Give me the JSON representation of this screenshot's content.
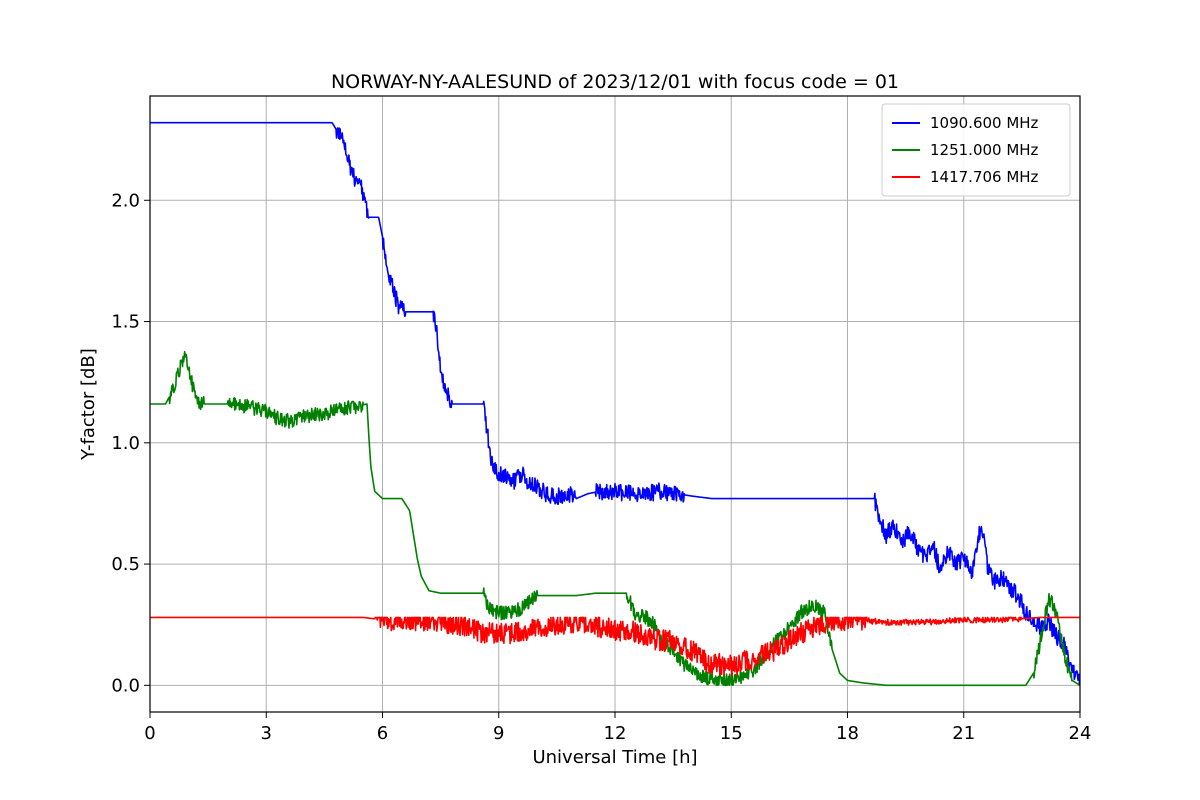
{
  "chart_data": {
    "type": "line",
    "title": "NORWAY-NY-AALESUND of 2023/12/01 with focus code = 01",
    "xlabel": "Universal Time [h]",
    "ylabel": "Y-factor [dB]",
    "xlim": [
      0,
      24
    ],
    "ylim": [
      -0.11,
      2.43
    ],
    "xticks": [
      0,
      3,
      6,
      9,
      12,
      15,
      18,
      21,
      24
    ],
    "xtick_labels": [
      "0",
      "3",
      "6",
      "9",
      "12",
      "15",
      "18",
      "21",
      "24"
    ],
    "yticks": [
      0.0,
      0.5,
      1.0,
      1.5,
      2.0
    ],
    "ytick_labels": [
      "0.0",
      "0.5",
      "1.0",
      "1.5",
      "2.0"
    ],
    "grid": true,
    "legend_position": "top-right",
    "series": [
      {
        "name": "1090.600 MHz",
        "color": "#0000ff",
        "x": [
          0,
          4.7,
          4.85,
          5.0,
          5.1,
          5.2,
          5.3,
          5.4,
          5.5,
          5.6,
          5.65,
          5.75,
          5.9,
          6.0,
          6.1,
          6.2,
          6.3,
          6.4,
          6.5,
          6.6,
          7.3,
          7.4,
          7.5,
          7.6,
          7.7,
          7.8,
          7.9,
          8.6,
          8.7,
          8.8,
          8.9,
          9.0,
          9.2,
          9.4,
          9.6,
          9.8,
          10.0,
          10.2,
          10.4,
          10.6,
          10.8,
          11.0,
          11.3,
          11.6,
          12.0,
          12.4,
          12.8,
          13.2,
          13.6,
          14.0,
          14.5,
          15.0,
          16.0,
          17.0,
          18.0,
          18.7,
          18.8,
          18.9,
          19.0,
          19.2,
          19.4,
          19.6,
          19.8,
          20.0,
          20.2,
          20.4,
          20.6,
          20.8,
          21.0,
          21.2,
          21.4,
          21.5,
          21.6,
          21.8,
          22.0,
          22.2,
          22.4,
          22.6,
          22.8,
          23.0,
          23.2,
          23.4,
          23.6,
          23.8,
          24.0
        ],
        "values": [
          2.32,
          2.32,
          2.28,
          2.25,
          2.18,
          2.12,
          2.08,
          2.1,
          2.02,
          1.96,
          1.93,
          1.93,
          1.93,
          1.85,
          1.72,
          1.68,
          1.62,
          1.57,
          1.55,
          1.54,
          1.54,
          1.45,
          1.3,
          1.24,
          1.2,
          1.16,
          1.16,
          1.16,
          1.05,
          0.92,
          0.9,
          0.87,
          0.86,
          0.84,
          0.87,
          0.83,
          0.82,
          0.79,
          0.78,
          0.78,
          0.79,
          0.77,
          0.79,
          0.8,
          0.8,
          0.79,
          0.79,
          0.8,
          0.79,
          0.78,
          0.77,
          0.77,
          0.77,
          0.77,
          0.77,
          0.77,
          0.7,
          0.66,
          0.62,
          0.66,
          0.58,
          0.64,
          0.57,
          0.52,
          0.58,
          0.47,
          0.56,
          0.5,
          0.53,
          0.46,
          0.62,
          0.64,
          0.5,
          0.43,
          0.44,
          0.4,
          0.37,
          0.3,
          0.26,
          0.24,
          0.26,
          0.2,
          0.17,
          0.07,
          0.02
        ]
      },
      {
        "name": "1251.000 MHz",
        "color": "#008000",
        "x": [
          0,
          0.4,
          0.6,
          0.8,
          0.9,
          1.0,
          1.15,
          1.3,
          1.5,
          2.0,
          2.5,
          3.0,
          3.3,
          3.6,
          4.0,
          4.5,
          5.0,
          5.6,
          5.65,
          5.7,
          5.8,
          6.0,
          6.5,
          6.7,
          6.8,
          6.9,
          7.0,
          7.2,
          7.5,
          8.0,
          8.6,
          8.7,
          8.9,
          9.2,
          9.5,
          9.8,
          10.0,
          10.5,
          11.0,
          11.5,
          12.0,
          12.3,
          12.5,
          12.8,
          13.0,
          13.2,
          13.5,
          13.8,
          14.0,
          14.2,
          14.6,
          15.0,
          15.5,
          16.0,
          16.5,
          16.8,
          17.1,
          17.4,
          17.6,
          17.8,
          18.0,
          18.4,
          19.0,
          20.0,
          21.0,
          22.0,
          22.6,
          22.8,
          23.0,
          23.2,
          23.4,
          23.6,
          23.8,
          24.0
        ],
        "values": [
          1.16,
          1.16,
          1.22,
          1.32,
          1.36,
          1.3,
          1.2,
          1.16,
          1.16,
          1.16,
          1.15,
          1.13,
          1.1,
          1.09,
          1.11,
          1.12,
          1.14,
          1.16,
          1.02,
          0.9,
          0.8,
          0.77,
          0.77,
          0.72,
          0.62,
          0.52,
          0.45,
          0.39,
          0.38,
          0.38,
          0.38,
          0.33,
          0.3,
          0.3,
          0.31,
          0.35,
          0.37,
          0.37,
          0.37,
          0.38,
          0.38,
          0.38,
          0.3,
          0.28,
          0.25,
          0.18,
          0.15,
          0.08,
          0.06,
          0.04,
          0.02,
          0.02,
          0.05,
          0.15,
          0.24,
          0.3,
          0.33,
          0.3,
          0.15,
          0.05,
          0.02,
          0.01,
          0.0,
          0.0,
          0.0,
          0.0,
          0.0,
          0.05,
          0.2,
          0.36,
          0.3,
          0.12,
          0.02,
          0.0
        ]
      },
      {
        "name": "1417.706 MHz",
        "color": "#ff0000",
        "x": [
          0,
          5.5,
          6.0,
          7.0,
          7.5,
          8.0,
          8.5,
          9.0,
          9.5,
          10.0,
          10.5,
          11.0,
          11.5,
          12.0,
          12.5,
          13.0,
          13.5,
          14.0,
          14.3,
          14.6,
          15.0,
          15.4,
          15.8,
          16.2,
          16.6,
          17.0,
          17.4,
          17.8,
          18.2,
          19.0,
          20.0,
          21.0,
          22.0,
          23.0,
          24.0
        ],
        "values": [
          0.28,
          0.28,
          0.27,
          0.27,
          0.26,
          0.25,
          0.22,
          0.21,
          0.22,
          0.23,
          0.25,
          0.26,
          0.24,
          0.23,
          0.22,
          0.19,
          0.18,
          0.14,
          0.1,
          0.09,
          0.08,
          0.1,
          0.12,
          0.15,
          0.2,
          0.23,
          0.26,
          0.27,
          0.27,
          0.26,
          0.26,
          0.27,
          0.27,
          0.28,
          0.28
        ]
      }
    ]
  }
}
